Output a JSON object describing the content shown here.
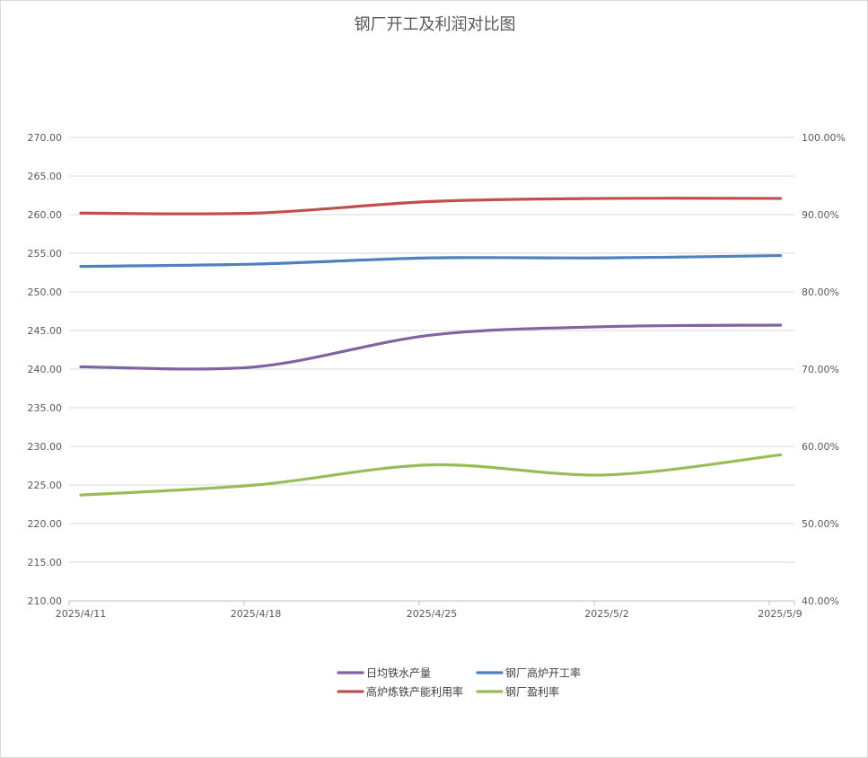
{
  "chart_data": {
    "type": "line",
    "title": "钢厂开工及利润对比图",
    "categories": [
      "2025/4/11",
      "2025/4/18",
      "2025/4/25",
      "2025/5/2",
      "2025/5/9"
    ],
    "y_left": {
      "min": 210,
      "max": 270,
      "step": 5,
      "tick_labels": [
        "210.00",
        "215.00",
        "220.00",
        "225.00",
        "230.00",
        "235.00",
        "240.00",
        "245.00",
        "250.00",
        "255.00",
        "260.00",
        "265.00",
        "270.00"
      ]
    },
    "y_right": {
      "min": 40,
      "max": 100,
      "step": 10,
      "unit": "%",
      "tick_labels": [
        "40.00%",
        "50.00%",
        "60.00%",
        "70.00%",
        "80.00%",
        "90.00%",
        "100.00%"
      ]
    },
    "grid": true,
    "legend_position": "bottom",
    "series": [
      {
        "name": "日均铁水产量",
        "axis": "left",
        "color": "#8064a2",
        "values": [
          240.3,
          240.3,
          244.4,
          245.5,
          245.7
        ]
      },
      {
        "name": "钢厂高炉开工率",
        "axis": "right",
        "color": "#4f81bd",
        "values": [
          83.3,
          83.6,
          84.4,
          84.4,
          84.7
        ]
      },
      {
        "name": "高炉炼铁产能利用率",
        "axis": "right",
        "color": "#c0504d",
        "values": [
          90.2,
          90.2,
          91.7,
          92.1,
          92.1
        ]
      },
      {
        "name": "钢厂盈利率",
        "axis": "right",
        "color": "#9bbb59",
        "values": [
          53.7,
          55.0,
          57.6,
          56.3,
          58.9
        ]
      }
    ]
  }
}
